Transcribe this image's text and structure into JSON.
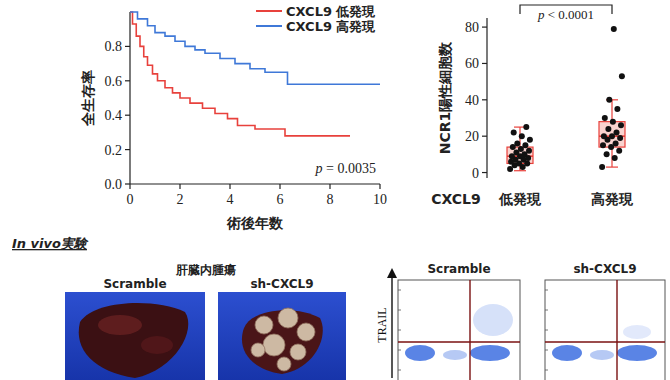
{
  "chart_data": [
    {
      "type": "line",
      "xlabel": "術後年数",
      "ylabel": "全生存率",
      "xlim": [
        0,
        10
      ],
      "ylim": [
        0,
        1.0
      ],
      "xticks": [
        0,
        2,
        4,
        6,
        8,
        10
      ],
      "yticks": [
        {
          "value": 0,
          "label": "0.0"
        },
        0.2,
        0.4,
        0.6,
        0.8
      ],
      "line_style": "step",
      "legend": "upper right",
      "annotations": [
        "p = 0.0035"
      ],
      "series": [
        {
          "name": "CXCL9 低発現",
          "color": "#e8413c",
          "x": [
            0,
            0.1,
            0.25,
            0.4,
            0.55,
            0.7,
            0.9,
            1.1,
            1.4,
            1.7,
            2.0,
            2.4,
            2.9,
            3.4,
            3.9,
            4.3,
            5.0,
            6.2,
            8.8
          ],
          "values": [
            1.0,
            0.93,
            0.86,
            0.8,
            0.74,
            0.69,
            0.64,
            0.6,
            0.56,
            0.53,
            0.5,
            0.47,
            0.44,
            0.41,
            0.38,
            0.34,
            0.32,
            0.28,
            0.28
          ]
        },
        {
          "name": "CXCL9 高発現",
          "color": "#3f78d8",
          "x": [
            0,
            0.3,
            0.7,
            1.0,
            1.4,
            1.8,
            2.2,
            2.6,
            3.0,
            3.6,
            4.2,
            4.8,
            5.4,
            6.3,
            10
          ],
          "values": [
            1.0,
            0.96,
            0.92,
            0.88,
            0.86,
            0.83,
            0.8,
            0.78,
            0.76,
            0.73,
            0.7,
            0.67,
            0.65,
            0.58,
            0.58
          ]
        }
      ]
    },
    {
      "type": "box",
      "xlabel": "CXCL9",
      "ylabel": "NCR1陽性細胞数",
      "categories": [
        "低発現",
        "高発現"
      ],
      "ylim": [
        -3,
        85
      ],
      "yticks": [
        0,
        20,
        40,
        60,
        80
      ],
      "color": "#e8403a",
      "annotations": [
        "p < 0.0001"
      ],
      "boxes": [
        {
          "min": 1,
          "q1": 5,
          "median": 9,
          "q3": 14,
          "max": 25
        },
        {
          "min": 3,
          "q1": 14,
          "median": 20,
          "q3": 28,
          "max": 40
        }
      ],
      "points": [
        [
          2,
          3,
          4,
          5,
          5,
          6,
          7,
          7,
          8,
          9,
          9,
          10,
          11,
          12,
          13,
          14,
          15,
          16,
          18,
          20,
          22,
          25
        ],
        [
          3,
          8,
          10,
          12,
          14,
          15,
          16,
          18,
          19,
          20,
          20,
          22,
          24,
          26,
          28,
          30,
          35,
          40,
          53,
          79
        ]
      ]
    }
  ],
  "in_vivo": {
    "title": "In vivo実験",
    "liver": {
      "label": "肝臓内腫瘍",
      "panels": [
        "Scramble",
        "sh-CXCL9"
      ]
    },
    "flow": {
      "ylabel": "TRAIL",
      "panels": [
        "Scramble",
        "sh-CXCL9"
      ]
    }
  }
}
